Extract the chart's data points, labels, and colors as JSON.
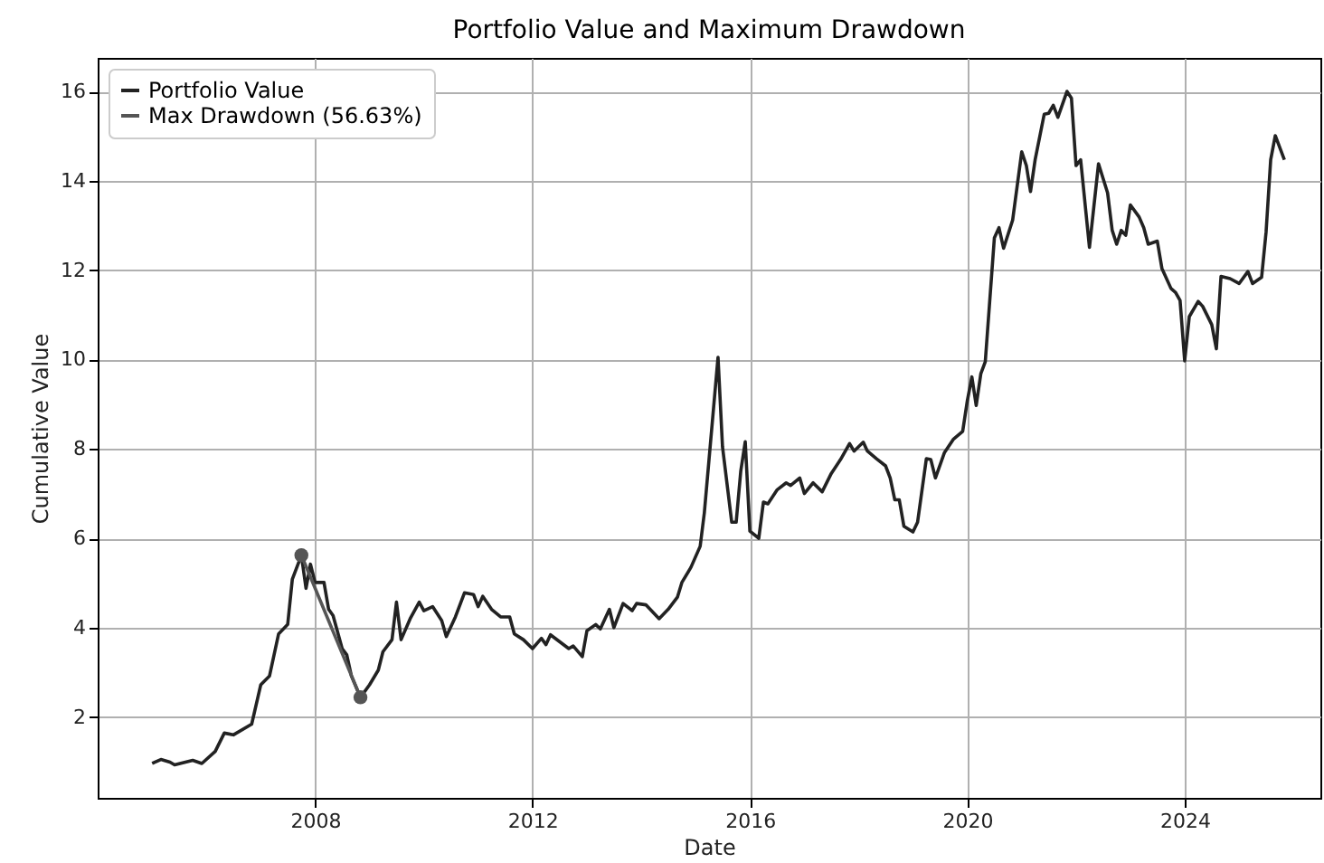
{
  "chart_data": {
    "type": "line",
    "title": "Portfolio Value and Maximum Drawdown",
    "xlabel": "Date",
    "ylabel": "Cumulative Value",
    "xlim": [
      "2004-01",
      "2026-07"
    ],
    "xticks": [
      "2008",
      "2012",
      "2016",
      "2020",
      "2024"
    ],
    "ylim": [
      0.19,
      16.75
    ],
    "yticks": [
      2,
      4,
      6,
      8,
      10,
      12,
      14,
      16
    ],
    "grid": true,
    "legend": "top left",
    "series": [
      {
        "name": "Portfolio Value",
        "color": "#222222",
        "marker": "none",
        "x": [
          "2005-01",
          "2005-03",
          "2005-05",
          "2005-06",
          "2005-10",
          "2005-12",
          "2006-03",
          "2006-05",
          "2006-07",
          "2006-11",
          "2007-01",
          "2007-03",
          "2007-05",
          "2007-07",
          "2007-08",
          "2007-10",
          "2007-11",
          "2007-12",
          "2008-01",
          "2008-03",
          "2008-04",
          "2008-05",
          "2008-07",
          "2008-08",
          "2008-09",
          "2008-11",
          "2009-01",
          "2009-03",
          "2009-04",
          "2009-06",
          "2009-07",
          "2009-08",
          "2009-10",
          "2009-12",
          "2010-01",
          "2010-03",
          "2010-05",
          "2010-06",
          "2010-08",
          "2010-10",
          "2010-12",
          "2011-01",
          "2011-02",
          "2011-04",
          "2011-06",
          "2011-08",
          "2011-09",
          "2011-11",
          "2012-01",
          "2012-03",
          "2012-04",
          "2012-05",
          "2012-09",
          "2012-10",
          "2012-12",
          "2013-01",
          "2013-03",
          "2013-04",
          "2013-06",
          "2013-07",
          "2013-09",
          "2013-11",
          "2013-12",
          "2014-02",
          "2014-05",
          "2014-07",
          "2014-09",
          "2014-10",
          "2014-12",
          "2015-02",
          "2015-03",
          "2015-06",
          "2015-07",
          "2015-09",
          "2015-10",
          "2015-11",
          "2015-12",
          "2016-01",
          "2016-03",
          "2016-04",
          "2016-05",
          "2016-07",
          "2016-09",
          "2016-10",
          "2016-12",
          "2017-01",
          "2017-03",
          "2017-05",
          "2017-07",
          "2017-09",
          "2017-11",
          "2017-12",
          "2018-02",
          "2018-03",
          "2018-05",
          "2018-07",
          "2018-08",
          "2018-09",
          "2018-10",
          "2018-11",
          "2019-01",
          "2019-02",
          "2019-04",
          "2019-05",
          "2019-06",
          "2019-08",
          "2019-10",
          "2019-12",
          "2020-01",
          "2020-02",
          "2020-03",
          "2020-04",
          "2020-05",
          "2020-07",
          "2020-08",
          "2020-09",
          "2020-11",
          "2021-01",
          "2021-02",
          "2021-03",
          "2021-04",
          "2021-06",
          "2021-07",
          "2021-08",
          "2021-09",
          "2021-11",
          "2021-12",
          "2022-01",
          "2022-02",
          "2022-04",
          "2022-06",
          "2022-08",
          "2022-09",
          "2022-10",
          "2022-11",
          "2022-12",
          "2023-01",
          "2023-03",
          "2023-04",
          "2023-05",
          "2023-07",
          "2023-08",
          "2023-10",
          "2023-11",
          "2023-12",
          "2024-01",
          "2024-02",
          "2024-04",
          "2024-05",
          "2024-07",
          "2024-08",
          "2024-09",
          "2024-11",
          "2025-01",
          "2025-03",
          "2025-04",
          "2025-06",
          "2025-07",
          "2025-08",
          "2025-09",
          "2025-11"
        ],
        "values": [
          0.96,
          1.05,
          0.99,
          0.93,
          1.03,
          0.96,
          1.23,
          1.64,
          1.6,
          1.84,
          2.72,
          2.92,
          3.86,
          4.07,
          5.08,
          5.62,
          4.88,
          5.42,
          5.01,
          5.01,
          4.41,
          4.27,
          3.53,
          3.39,
          2.92,
          2.44,
          2.72,
          3.05,
          3.46,
          3.73,
          4.57,
          3.73,
          4.2,
          4.57,
          4.38,
          4.47,
          4.16,
          3.8,
          4.24,
          4.78,
          4.74,
          4.47,
          4.7,
          4.41,
          4.24,
          4.24,
          3.86,
          3.73,
          3.53,
          3.76,
          3.62,
          3.84,
          3.53,
          3.59,
          3.35,
          3.93,
          4.07,
          3.97,
          4.41,
          4.0,
          4.54,
          4.38,
          4.54,
          4.51,
          4.2,
          4.41,
          4.68,
          5.01,
          5.35,
          5.82,
          6.57,
          10.05,
          8.05,
          6.36,
          6.36,
          7.51,
          8.16,
          6.16,
          6.0,
          6.81,
          6.77,
          7.08,
          7.24,
          7.18,
          7.35,
          7.0,
          7.24,
          7.04,
          7.45,
          7.76,
          8.12,
          7.95,
          8.15,
          7.95,
          7.78,
          7.62,
          7.35,
          6.86,
          6.86,
          6.27,
          6.14,
          6.36,
          7.78,
          7.76,
          7.35,
          7.92,
          8.22,
          8.39,
          9.07,
          9.61,
          8.97,
          9.68,
          9.95,
          12.72,
          12.95,
          12.49,
          13.12,
          14.65,
          14.34,
          13.76,
          14.47,
          15.49,
          15.51,
          15.69,
          15.42,
          16.0,
          15.85,
          14.34,
          14.47,
          12.51,
          14.38,
          13.73,
          12.89,
          12.58,
          12.89,
          12.78,
          13.46,
          13.19,
          12.95,
          12.58,
          12.65,
          12.04,
          11.59,
          11.5,
          11.32,
          9.97,
          10.96,
          11.3,
          11.19,
          10.78,
          10.24,
          11.86,
          11.81,
          11.7,
          11.97,
          11.7,
          11.84,
          12.85,
          14.47,
          15.01,
          14.47
        ]
      },
      {
        "name": "Max Drawdown (56.63%)",
        "color": "#555555",
        "marker": "circle",
        "x": [
          "2007-10",
          "2008-11"
        ],
        "values": [
          5.62,
          2.44
        ]
      }
    ]
  }
}
